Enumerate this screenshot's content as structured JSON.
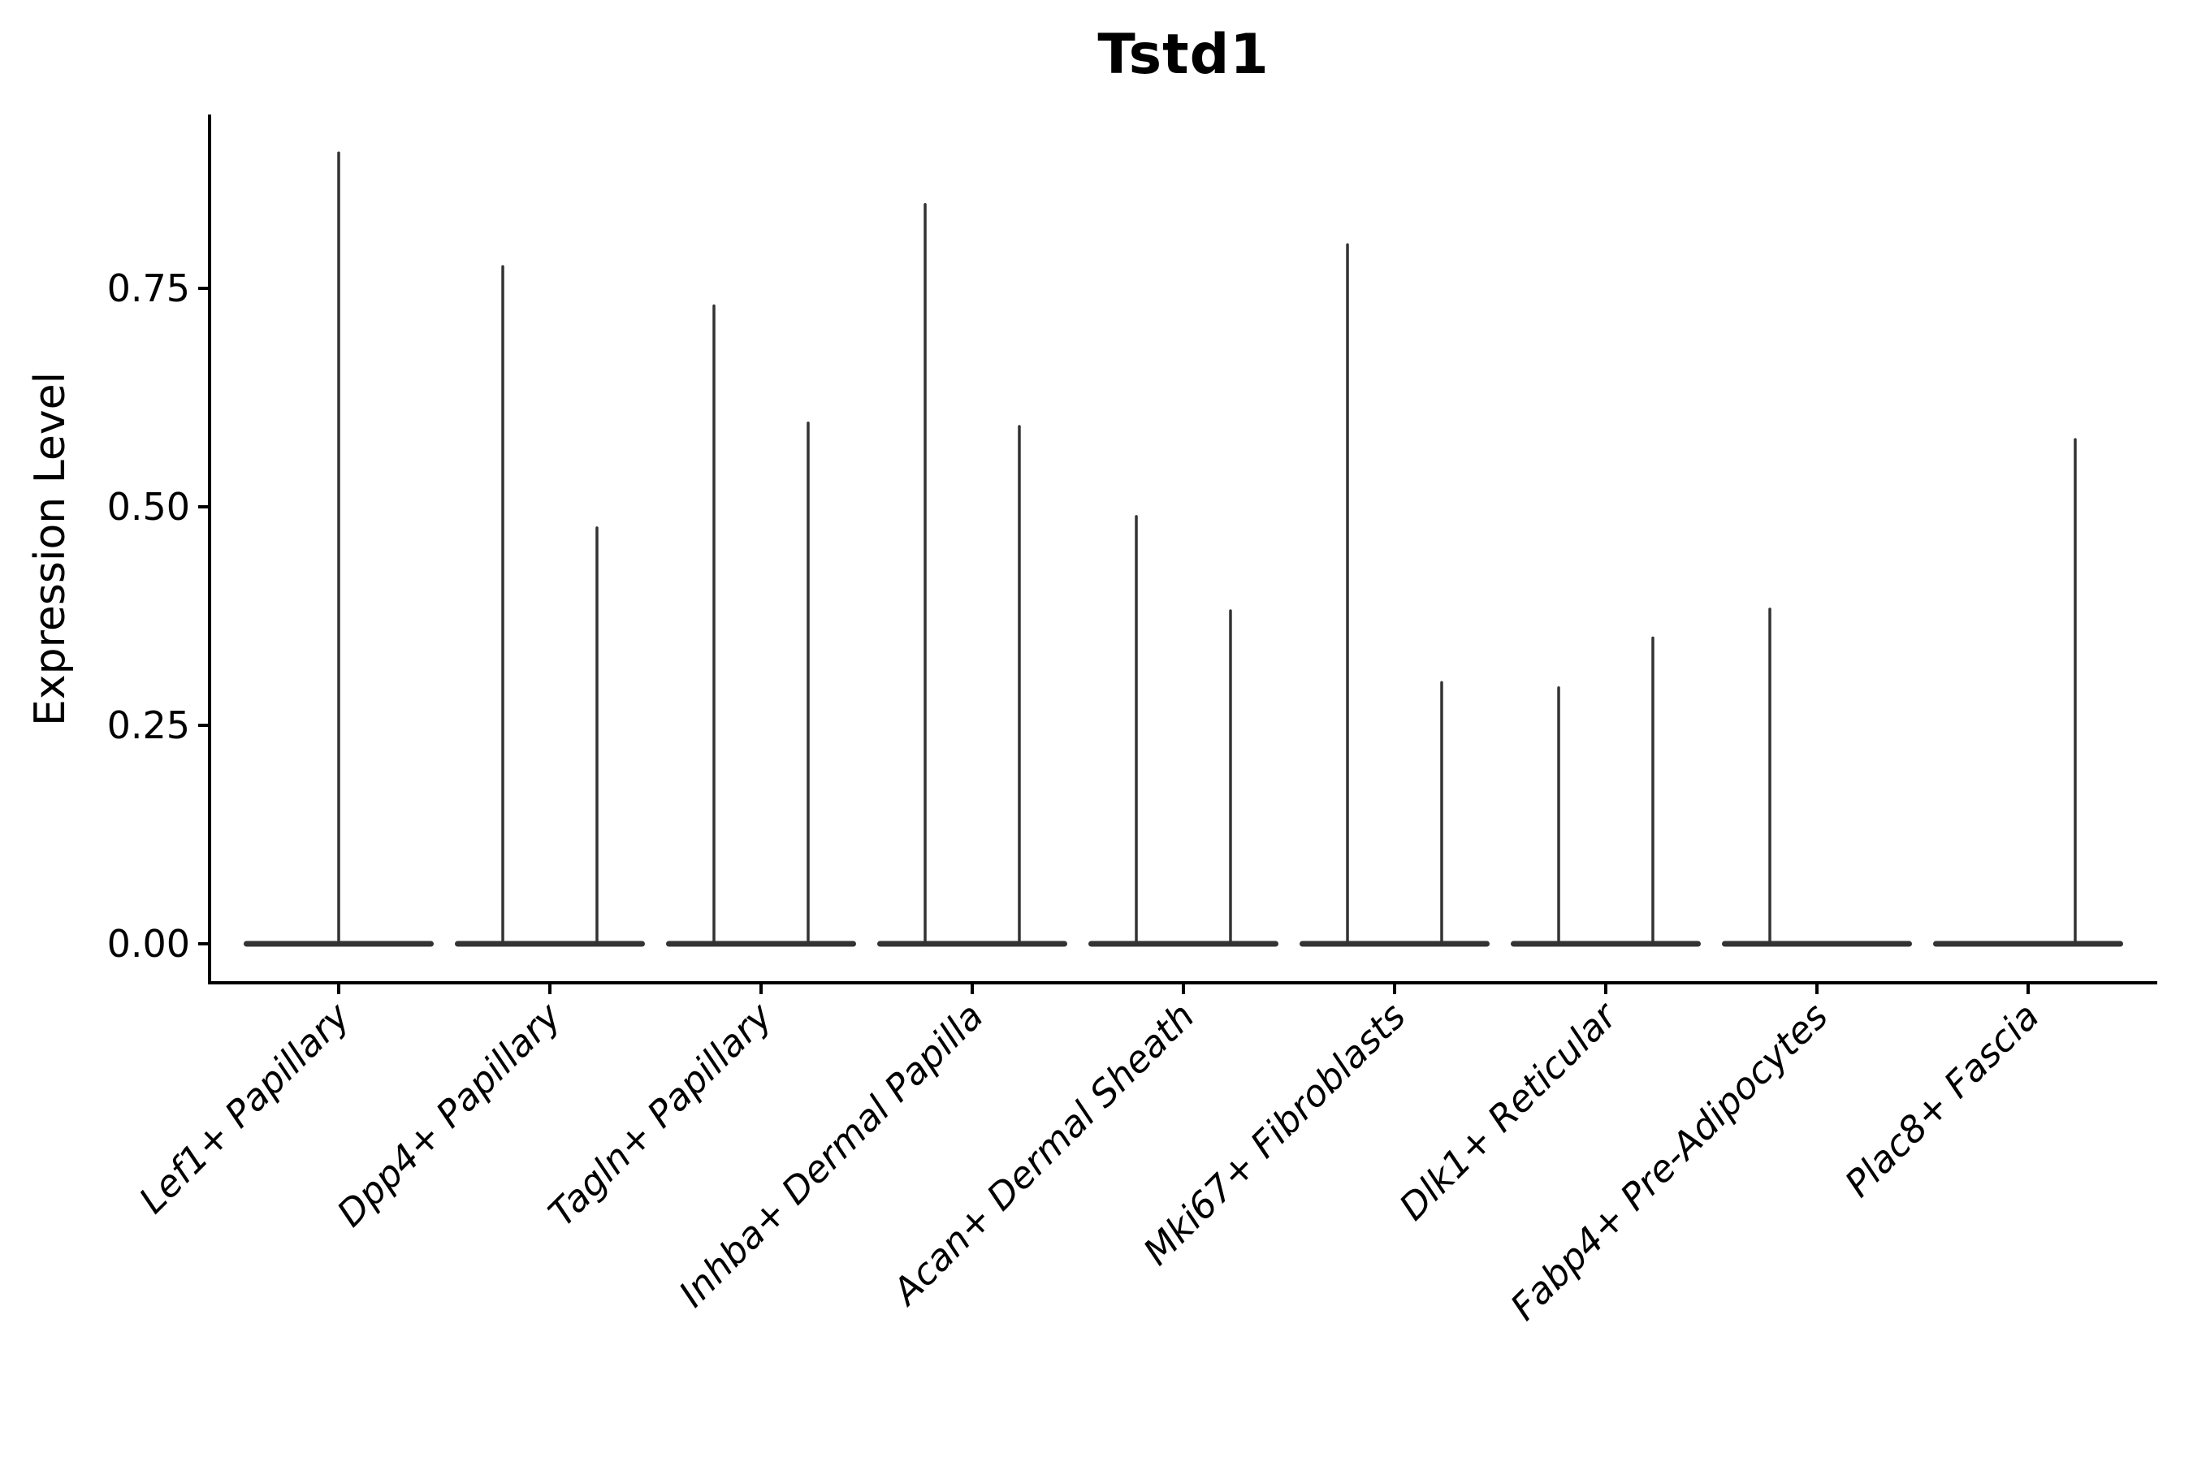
{
  "page": {
    "background": "#ffffff"
  },
  "chart_data": {
    "type": "violin",
    "title": "Tstd1",
    "ylabel": "Expression Level",
    "xlabel": "",
    "ylim": [
      0,
      0.95
    ],
    "grid": false,
    "legend": false,
    "violin_color": "#333333",
    "axis_color": "#000000",
    "baseline_value": 0.0,
    "yticks": [
      {
        "label": "0.00",
        "value": 0.0
      },
      {
        "label": "0.25",
        "value": 0.25
      },
      {
        "label": "0.50",
        "value": 0.5
      },
      {
        "label": "0.75",
        "value": 0.75
      }
    ],
    "categories": [
      {
        "label": "Lef1+ Papillary",
        "spikes": [
          {
            "offset": 0.0,
            "max": 0.905
          }
        ]
      },
      {
        "label": "Dpp4+ Papillary",
        "spikes": [
          {
            "offset": -0.223,
            "max": 0.775
          },
          {
            "offset": 0.223,
            "max": 0.476
          }
        ]
      },
      {
        "label": "Tagln+ Papillary",
        "spikes": [
          {
            "offset": -0.223,
            "max": 0.73
          },
          {
            "offset": 0.223,
            "max": 0.596
          }
        ]
      },
      {
        "label": "Inhba+ Dermal Papilla",
        "spikes": [
          {
            "offset": -0.223,
            "max": 0.846
          },
          {
            "offset": 0.223,
            "max": 0.592
          }
        ]
      },
      {
        "label": "Acan+ Dermal Sheath",
        "spikes": [
          {
            "offset": -0.223,
            "max": 0.489
          },
          {
            "offset": 0.223,
            "max": 0.381
          }
        ]
      },
      {
        "label": "Mki67+ Fibroblasts",
        "spikes": [
          {
            "offset": -0.223,
            "max": 0.8
          },
          {
            "offset": 0.223,
            "max": 0.299
          }
        ]
      },
      {
        "label": "Dlk1+ Reticular",
        "spikes": [
          {
            "offset": -0.223,
            "max": 0.293
          },
          {
            "offset": 0.223,
            "max": 0.35
          }
        ]
      },
      {
        "label": "Fabp4+ Pre-Adipocytes",
        "spikes": [
          {
            "offset": -0.223,
            "max": 0.383
          }
        ]
      },
      {
        "label": "Plac8+ Fascia",
        "spikes": [
          {
            "offset": 0.223,
            "max": 0.577
          }
        ]
      }
    ]
  }
}
